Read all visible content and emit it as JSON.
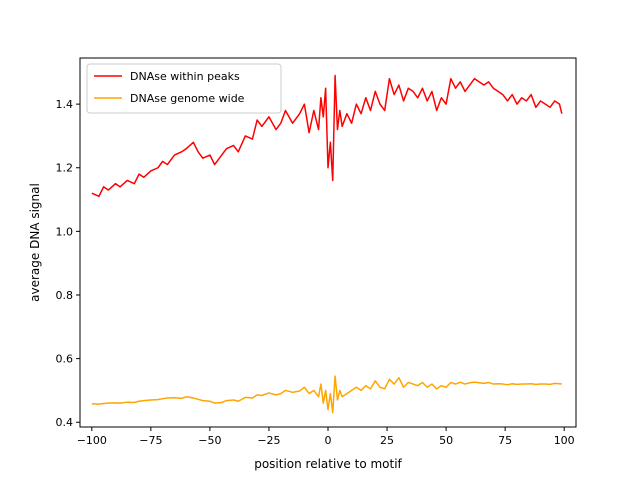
{
  "chart_data": {
    "type": "line",
    "title": "",
    "xlabel": "position relative to motif",
    "ylabel": "average DNA signal",
    "xlim": [
      -105,
      105
    ],
    "ylim": [
      0.385,
      1.545
    ],
    "xticks": [
      -100,
      -75,
      -50,
      -25,
      0,
      25,
      50,
      75,
      100
    ],
    "xtick_labels": [
      "−100",
      "−75",
      "−50",
      "−25",
      "0",
      "25",
      "50",
      "75",
      "100"
    ],
    "yticks": [
      0.4,
      0.6,
      0.8,
      1.0,
      1.2,
      1.4
    ],
    "ytick_labels": [
      "0.4",
      "0.6",
      "0.8",
      "1.0",
      "1.2",
      "1.4"
    ],
    "grid": false,
    "legend_position": "top-left",
    "series": [
      {
        "name": "DNAse within peaks",
        "color": "#ff0000",
        "x": [
          -100,
          -97,
          -95,
          -93,
          -90,
          -88,
          -85,
          -82,
          -80,
          -78,
          -75,
          -72,
          -70,
          -68,
          -65,
          -62,
          -60,
          -57,
          -55,
          -53,
          -50,
          -48,
          -45,
          -43,
          -40,
          -38,
          -35,
          -32,
          -30,
          -28,
          -25,
          -22,
          -20,
          -18,
          -15,
          -12,
          -10,
          -8,
          -6,
          -4,
          -3,
          -2,
          -1,
          0,
          1,
          2,
          3,
          4,
          5,
          6,
          8,
          10,
          12,
          14,
          16,
          18,
          20,
          22,
          24,
          26,
          28,
          30,
          32,
          34,
          36,
          38,
          40,
          42,
          44,
          46,
          48,
          50,
          52,
          54,
          56,
          58,
          60,
          62,
          64,
          66,
          68,
          70,
          72,
          74,
          76,
          78,
          80,
          82,
          84,
          86,
          88,
          90,
          92,
          94,
          96,
          98,
          99
        ],
        "values": [
          1.12,
          1.11,
          1.14,
          1.13,
          1.15,
          1.14,
          1.16,
          1.15,
          1.18,
          1.17,
          1.19,
          1.2,
          1.22,
          1.21,
          1.24,
          1.25,
          1.26,
          1.28,
          1.25,
          1.23,
          1.24,
          1.21,
          1.24,
          1.26,
          1.27,
          1.25,
          1.3,
          1.29,
          1.35,
          1.33,
          1.36,
          1.32,
          1.34,
          1.38,
          1.34,
          1.37,
          1.4,
          1.31,
          1.38,
          1.32,
          1.42,
          1.36,
          1.45,
          1.2,
          1.28,
          1.16,
          1.49,
          1.32,
          1.38,
          1.33,
          1.37,
          1.34,
          1.4,
          1.37,
          1.42,
          1.38,
          1.44,
          1.4,
          1.38,
          1.48,
          1.43,
          1.46,
          1.41,
          1.45,
          1.44,
          1.42,
          1.45,
          1.41,
          1.44,
          1.38,
          1.42,
          1.4,
          1.48,
          1.45,
          1.47,
          1.44,
          1.46,
          1.48,
          1.47,
          1.46,
          1.47,
          1.45,
          1.44,
          1.43,
          1.41,
          1.43,
          1.4,
          1.42,
          1.41,
          1.43,
          1.39,
          1.41,
          1.4,
          1.39,
          1.41,
          1.4,
          1.37
        ]
      },
      {
        "name": "DNAse genome wide",
        "color": "#ffa500",
        "x": [
          -100,
          -97,
          -95,
          -93,
          -90,
          -88,
          -85,
          -82,
          -80,
          -78,
          -75,
          -72,
          -70,
          -68,
          -65,
          -62,
          -60,
          -57,
          -55,
          -53,
          -50,
          -48,
          -45,
          -43,
          -40,
          -38,
          -35,
          -32,
          -30,
          -28,
          -25,
          -22,
          -20,
          -18,
          -15,
          -12,
          -10,
          -8,
          -6,
          -4,
          -3,
          -2,
          -1,
          0,
          1,
          2,
          3,
          4,
          5,
          6,
          8,
          10,
          12,
          14,
          16,
          18,
          20,
          22,
          24,
          26,
          28,
          30,
          32,
          34,
          36,
          38,
          40,
          42,
          44,
          46,
          48,
          50,
          52,
          54,
          56,
          58,
          60,
          62,
          64,
          66,
          68,
          70,
          72,
          74,
          76,
          78,
          80,
          82,
          84,
          86,
          88,
          90,
          92,
          94,
          96,
          98,
          99
        ],
        "values": [
          0.458,
          0.457,
          0.459,
          0.46,
          0.461,
          0.46,
          0.463,
          0.462,
          0.466,
          0.468,
          0.47,
          0.471,
          0.474,
          0.476,
          0.477,
          0.475,
          0.48,
          0.476,
          0.472,
          0.468,
          0.466,
          0.46,
          0.462,
          0.468,
          0.47,
          0.466,
          0.478,
          0.476,
          0.486,
          0.484,
          0.492,
          0.486,
          0.49,
          0.5,
          0.494,
          0.498,
          0.51,
          0.49,
          0.5,
          0.48,
          0.52,
          0.46,
          0.5,
          0.44,
          0.49,
          0.43,
          0.545,
          0.47,
          0.5,
          0.48,
          0.49,
          0.5,
          0.51,
          0.5,
          0.515,
          0.505,
          0.53,
          0.51,
          0.505,
          0.535,
          0.52,
          0.54,
          0.51,
          0.525,
          0.52,
          0.515,
          0.525,
          0.51,
          0.52,
          0.505,
          0.515,
          0.51,
          0.525,
          0.52,
          0.526,
          0.52,
          0.524,
          0.526,
          0.524,
          0.522,
          0.525,
          0.52,
          0.521,
          0.52,
          0.518,
          0.521,
          0.519,
          0.52,
          0.52,
          0.521,
          0.519,
          0.52,
          0.52,
          0.519,
          0.522,
          0.521,
          0.52
        ]
      }
    ]
  }
}
